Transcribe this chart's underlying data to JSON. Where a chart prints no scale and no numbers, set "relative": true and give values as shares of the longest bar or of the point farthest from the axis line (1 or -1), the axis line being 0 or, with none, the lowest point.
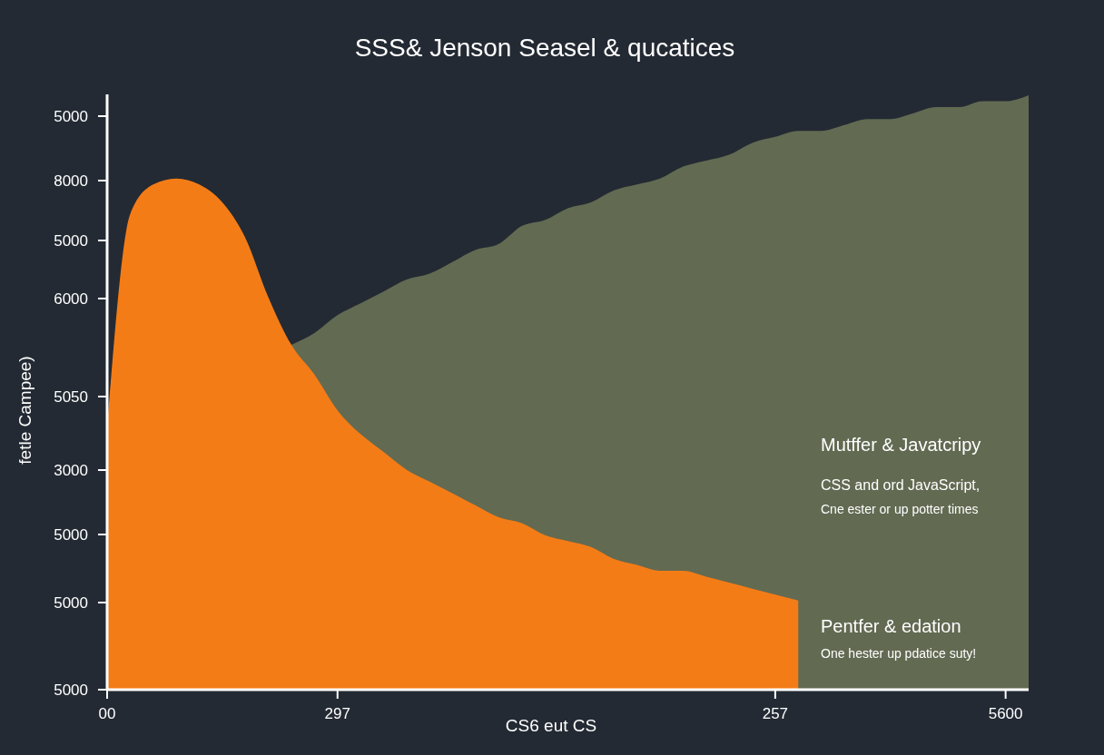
{
  "chart_data": {
    "type": "area",
    "title": "SSS& Jenson Seasel & qucatices",
    "xlabel": "CS6 eut CS",
    "ylabel": "fetle Campee)",
    "relative": true,
    "categories": [
      "00",
      null,
      null,
      null,
      null,
      null,
      null,
      null,
      null,
      null,
      "297",
      null,
      null,
      null,
      null,
      null,
      null,
      null,
      null,
      null,
      null,
      null,
      null,
      null,
      null,
      null,
      null,
      null,
      null,
      "257",
      null,
      null,
      null,
      null,
      null,
      null,
      null,
      null,
      null,
      "5600",
      null
    ],
    "series": [
      {
        "color": "#626a52",
        "values": [
          0.37,
          null,
          null,
          null,
          null,
          null,
          null,
          null,
          0.58,
          0.6,
          0.63,
          0.65,
          0.67,
          0.69,
          0.7,
          0.72,
          0.74,
          0.75,
          0.78,
          0.79,
          0.81,
          0.82,
          0.84,
          0.85,
          0.86,
          0.88,
          0.89,
          0.9,
          0.92,
          0.93,
          0.94,
          0.94,
          0.95,
          0.96,
          0.96,
          0.97,
          0.98,
          0.98,
          0.99,
          0.99,
          1.0
        ]
      },
      {
        "color": "#f47c16",
        "values": [
          0.44,
          0.8,
          0.85,
          0.86,
          0.85,
          0.82,
          0.76,
          0.66,
          0.58,
          0.53,
          0.47,
          0.43,
          0.4,
          0.37,
          0.35,
          0.33,
          0.31,
          0.29,
          0.28,
          0.26,
          0.25,
          0.24,
          0.22,
          0.21,
          0.2,
          0.2,
          0.19,
          0.18,
          0.17,
          0.16,
          0.15,
          null,
          null,
          null,
          null,
          null,
          null,
          null,
          null,
          null,
          null
        ]
      }
    ],
    "annotations": [
      "5000",
      "8000",
      "5000",
      "6000",
      "5050",
      "3000",
      "5000",
      "5000",
      "5000",
      "Mutffer & Javatcripy",
      "CSS and ord JavaScript,",
      "Cne ester or up potter times",
      "Pentfer & edation",
      "One hester up pdatice suty!"
    ],
    "grid": false
  }
}
